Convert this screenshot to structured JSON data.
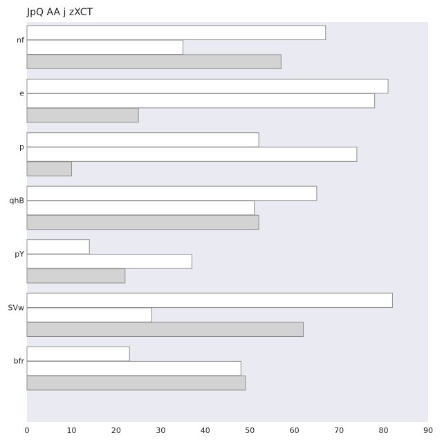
{
  "chart_data": {
    "type": "bar",
    "orientation": "horizontal",
    "title": "JpQ AA j zXCT",
    "xlabel": "",
    "ylabel": "",
    "xlim": [
      0,
      90
    ],
    "xticks": [
      "0",
      "10",
      "20",
      "30",
      "40",
      "50",
      "60",
      "70",
      "80",
      "90"
    ],
    "grid": false,
    "categories": [
      "nf",
      "e",
      "p",
      "qhB",
      "pY",
      "SVw",
      "bfr"
    ],
    "series": [
      {
        "values": [
          67,
          81,
          52,
          65,
          14,
          82,
          23
        ]
      },
      {
        "values": [
          35,
          78,
          74,
          51,
          37,
          28,
          48
        ]
      },
      {
        "values": [
          57,
          25,
          10,
          52,
          22,
          62,
          49
        ]
      }
    ]
  },
  "colors": {
    "plot_background": "#eaeaf2",
    "series": [
      "#ffffff",
      "#ffffff",
      "#d3d3d3"
    ],
    "bar_edge": "#8c8c8c",
    "text": "#222222"
  }
}
